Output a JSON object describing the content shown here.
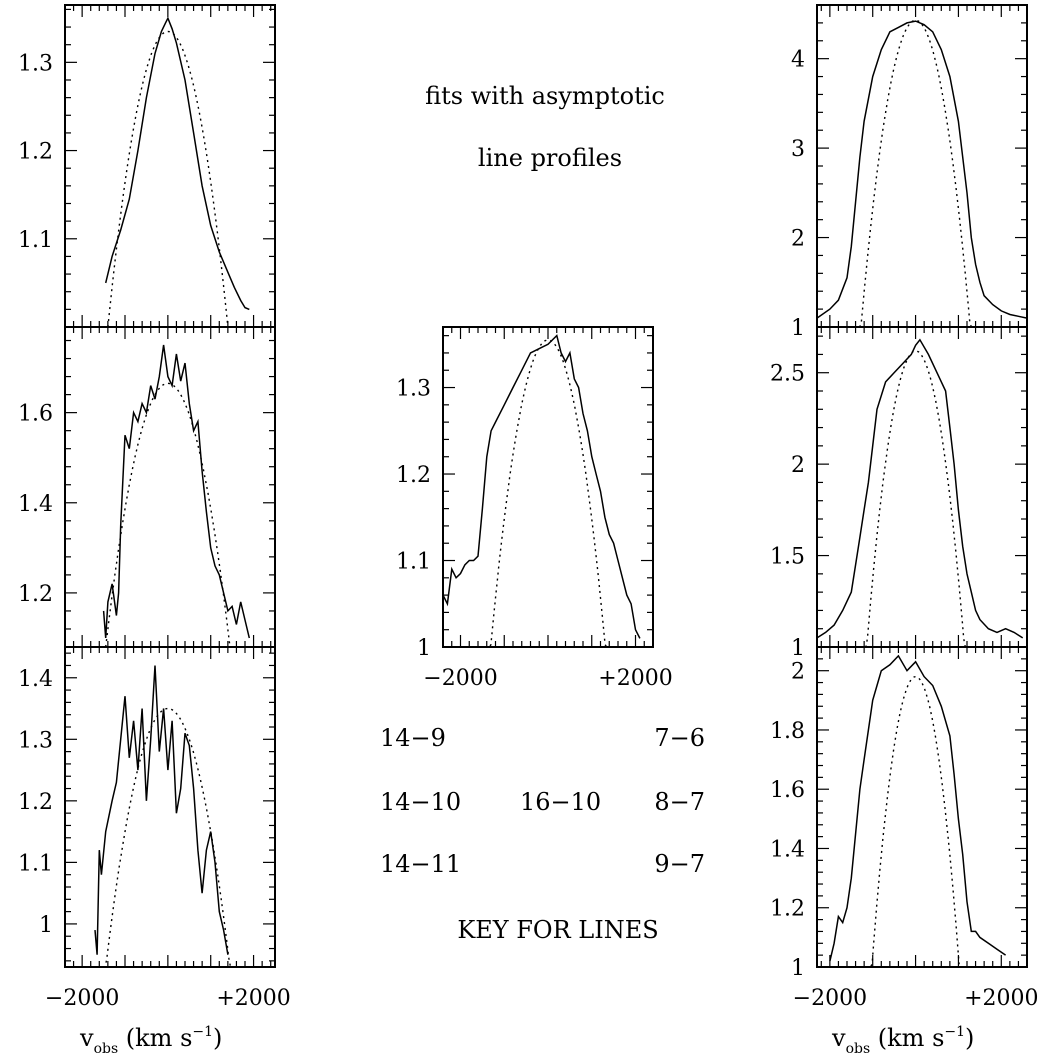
{
  "figure": {
    "title_line1": "fits with asymptotic",
    "title_line2": "line profiles",
    "key_title": "KEY FOR LINES",
    "key": {
      "left_col": [
        "14−9",
        "14−10",
        "14−11"
      ],
      "mid_col": [
        "",
        "16−10",
        ""
      ],
      "right_col": [
        "7−6",
        "8−7",
        "9−7"
      ]
    },
    "xlabel_left": "v_obs (km s⁻¹)",
    "xlabel_right": "v_obs (km s⁻¹)"
  },
  "chart_data": [
    {
      "id": "L1",
      "type": "line",
      "line": "14-9",
      "xlim": [
        -2400,
        2500
      ],
      "ylim": [
        1.0,
        1.365
      ],
      "yticks": [
        1.1,
        1.2,
        1.3
      ],
      "ytick_labels": [
        "1.1",
        "1.2",
        "1.3"
      ],
      "xticks": [],
      "xtick_labels": [],
      "observed": {
        "x": [
          -1450,
          -1300,
          -1100,
          -900,
          -700,
          -500,
          -300,
          -150,
          -50,
          0,
          100,
          200,
          400,
          600,
          800,
          1000,
          1200,
          1400,
          1550,
          1700,
          1800,
          1900
        ],
        "y": [
          1.05,
          1.08,
          1.11,
          1.145,
          1.2,
          1.26,
          1.31,
          1.335,
          1.345,
          1.35,
          1.338,
          1.322,
          1.28,
          1.22,
          1.16,
          1.115,
          1.085,
          1.062,
          1.045,
          1.03,
          1.022,
          1.02
        ]
      },
      "fit": {
        "vmax": 1400,
        "peak": 1.335,
        "base": 1.0
      }
    },
    {
      "id": "L2",
      "type": "line",
      "line": "14-10",
      "xlim": [
        -2400,
        2500
      ],
      "ylim": [
        1.08,
        1.79
      ],
      "yticks": [
        1.2,
        1.4,
        1.6
      ],
      "ytick_labels": [
        "1.2",
        "1.4",
        "1.6"
      ],
      "xticks": [],
      "xtick_labels": [],
      "observed": {
        "x": [
          -1500,
          -1450,
          -1400,
          -1300,
          -1200,
          -1150,
          -1100,
          -1000,
          -900,
          -800,
          -700,
          -600,
          -500,
          -400,
          -300,
          -200,
          -100,
          0,
          100,
          200,
          300,
          400,
          500,
          600,
          700,
          800,
          900,
          1000,
          1100,
          1200,
          1300,
          1400,
          1500,
          1600,
          1700,
          1800,
          1900
        ],
        "y": [
          1.16,
          1.1,
          1.18,
          1.22,
          1.15,
          1.2,
          1.35,
          1.55,
          1.52,
          1.6,
          1.58,
          1.62,
          1.6,
          1.66,
          1.63,
          1.68,
          1.75,
          1.68,
          1.66,
          1.73,
          1.67,
          1.71,
          1.62,
          1.56,
          1.58,
          1.47,
          1.38,
          1.3,
          1.26,
          1.24,
          1.2,
          1.16,
          1.17,
          1.13,
          1.18,
          1.14,
          1.1
        ]
      },
      "fit": {
        "vmax": 1450,
        "peak": 1.665,
        "base": 1.08
      }
    },
    {
      "id": "L3",
      "type": "line",
      "line": "14-11",
      "xlim": [
        -2400,
        2500
      ],
      "ylim": [
        0.93,
        1.45
      ],
      "yticks": [
        1.0,
        1.1,
        1.2,
        1.3,
        1.4
      ],
      "ytick_labels": [
        "1",
        "1.1",
        "1.2",
        "1.3",
        "1.4"
      ],
      "xticks": [
        -2000,
        2000
      ],
      "xtick_labels": [
        "−2000",
        "+2000"
      ],
      "observed": {
        "x": [
          -1700,
          -1650,
          -1600,
          -1550,
          -1450,
          -1300,
          -1200,
          -1100,
          -1000,
          -900,
          -800,
          -700,
          -600,
          -500,
          -400,
          -300,
          -200,
          -100,
          0,
          100,
          200,
          300,
          400,
          500,
          600,
          700,
          800,
          900,
          1000,
          1100,
          1200,
          1300,
          1400
        ],
        "y": [
          0.99,
          0.95,
          1.12,
          1.08,
          1.15,
          1.2,
          1.23,
          1.3,
          1.37,
          1.27,
          1.33,
          1.25,
          1.35,
          1.2,
          1.3,
          1.42,
          1.28,
          1.35,
          1.25,
          1.33,
          1.18,
          1.22,
          1.31,
          1.29,
          1.22,
          1.12,
          1.05,
          1.12,
          1.15,
          1.1,
          1.02,
          0.99,
          0.95
        ]
      },
      "fit": {
        "vmax": 1500,
        "peak": 1.35,
        "base": 0.9
      }
    },
    {
      "id": "C",
      "type": "line",
      "line": "16-10",
      "xlim": [
        -2400,
        2400
      ],
      "ylim": [
        1.0,
        1.37
      ],
      "yticks": [
        1.0,
        1.1,
        1.2,
        1.3
      ],
      "ytick_labels": [
        "1",
        "1.1",
        "1.2",
        "1.3"
      ],
      "xticks": [
        -2000,
        2000
      ],
      "xtick_labels": [
        "−2000",
        "+2000"
      ],
      "observed": {
        "x": [
          -2400,
          -2300,
          -2200,
          -2100,
          -2000,
          -1900,
          -1800,
          -1700,
          -1600,
          -1500,
          -1400,
          -1300,
          -1200,
          -1000,
          -800,
          -600,
          -400,
          -200,
          0,
          200,
          300,
          400,
          500,
          600,
          700,
          800,
          900,
          1000,
          1100,
          1200,
          1300,
          1400,
          1500,
          1600,
          1700,
          1800,
          1900,
          2000,
          2100
        ],
        "y": [
          1.06,
          1.05,
          1.09,
          1.08,
          1.085,
          1.095,
          1.1,
          1.1,
          1.105,
          1.16,
          1.22,
          1.25,
          1.26,
          1.28,
          1.3,
          1.32,
          1.34,
          1.345,
          1.35,
          1.36,
          1.34,
          1.33,
          1.34,
          1.31,
          1.3,
          1.27,
          1.25,
          1.22,
          1.2,
          1.18,
          1.15,
          1.13,
          1.12,
          1.1,
          1.08,
          1.06,
          1.05,
          1.02,
          1.01
        ]
      },
      "fit": {
        "vmax": 1450,
        "peak": 1.355,
        "base": 0.92
      }
    },
    {
      "id": "R1",
      "type": "line",
      "line": "7-6",
      "xlim": [
        -2300,
        2600
      ],
      "ylim": [
        1.0,
        4.6
      ],
      "yticks": [
        1,
        2,
        3,
        4
      ],
      "ytick_labels": [
        "1",
        "2",
        "3",
        "4"
      ],
      "xticks": [],
      "xtick_labels": [],
      "observed": {
        "x": [
          -2300,
          -2000,
          -1800,
          -1600,
          -1500,
          -1400,
          -1300,
          -1200,
          -1000,
          -800,
          -600,
          -400,
          -200,
          0,
          200,
          400,
          600,
          800,
          1000,
          1200,
          1300,
          1400,
          1500,
          1600,
          1800,
          2000,
          2200,
          2400,
          2600
        ],
        "y": [
          1.1,
          1.2,
          1.3,
          1.55,
          1.9,
          2.4,
          2.9,
          3.3,
          3.8,
          4.1,
          4.3,
          4.35,
          4.4,
          4.42,
          4.38,
          4.3,
          4.1,
          3.8,
          3.3,
          2.5,
          2.0,
          1.7,
          1.5,
          1.35,
          1.25,
          1.18,
          1.14,
          1.12,
          1.1
        ]
      },
      "fit": {
        "vmax": 1450,
        "peak": 4.43,
        "base": 0.0
      }
    },
    {
      "id": "R2",
      "type": "line",
      "line": "8-7",
      "xlim": [
        -2300,
        2600
      ],
      "ylim": [
        1.0,
        2.75
      ],
      "yticks": [
        1.0,
        1.5,
        2.0,
        2.5
      ],
      "ytick_labels": [
        "1",
        "1.5",
        "2",
        "2.5"
      ],
      "xticks": [],
      "xtick_labels": [],
      "observed": {
        "x": [
          -2300,
          -2100,
          -1900,
          -1700,
          -1500,
          -1400,
          -1300,
          -1200,
          -1100,
          -1000,
          -900,
          -700,
          -500,
          -300,
          -100,
          0,
          100,
          300,
          500,
          700,
          800,
          900,
          1000,
          1100,
          1200,
          1300,
          1400,
          1500,
          1700,
          1900,
          2100,
          2300,
          2500
        ],
        "y": [
          1.05,
          1.08,
          1.12,
          1.2,
          1.3,
          1.45,
          1.6,
          1.75,
          1.9,
          2.1,
          2.3,
          2.45,
          2.5,
          2.55,
          2.6,
          2.65,
          2.68,
          2.6,
          2.5,
          2.4,
          2.2,
          2.0,
          1.75,
          1.55,
          1.4,
          1.3,
          1.2,
          1.15,
          1.1,
          1.08,
          1.1,
          1.08,
          1.05
        ]
      },
      "fit": {
        "vmax": 1450,
        "peak": 2.62,
        "base": 0.0
      }
    },
    {
      "id": "R3",
      "type": "line",
      "line": "9-7",
      "xlim": [
        -2300,
        2600
      ],
      "ylim": [
        1.0,
        2.08
      ],
      "yticks": [
        1.0,
        1.2,
        1.4,
        1.6,
        1.8,
        2.0
      ],
      "ytick_labels": [
        "1",
        "1.2",
        "1.4",
        "1.6",
        "1.8",
        "2"
      ],
      "xticks": [
        -2000,
        2000
      ],
      "xtick_labels": [
        "−2000",
        "+2000"
      ],
      "observed": {
        "x": [
          -2000,
          -1900,
          -1800,
          -1700,
          -1600,
          -1500,
          -1400,
          -1300,
          -1200,
          -1100,
          -1000,
          -900,
          -800,
          -600,
          -400,
          -200,
          0,
          200,
          400,
          600,
          800,
          900,
          1000,
          1100,
          1200,
          1300,
          1400,
          1500,
          1700,
          1900,
          2100
        ],
        "y": [
          1.02,
          1.08,
          1.17,
          1.15,
          1.2,
          1.3,
          1.45,
          1.6,
          1.7,
          1.8,
          1.9,
          1.95,
          2.0,
          2.02,
          2.05,
          2.0,
          2.03,
          1.98,
          1.95,
          1.88,
          1.78,
          1.65,
          1.5,
          1.38,
          1.22,
          1.12,
          1.12,
          1.1,
          1.08,
          1.06,
          1.04
        ]
      },
      "fit": {
        "vmax": 1450,
        "peak": 1.98,
        "base": 0.0
      }
    }
  ]
}
